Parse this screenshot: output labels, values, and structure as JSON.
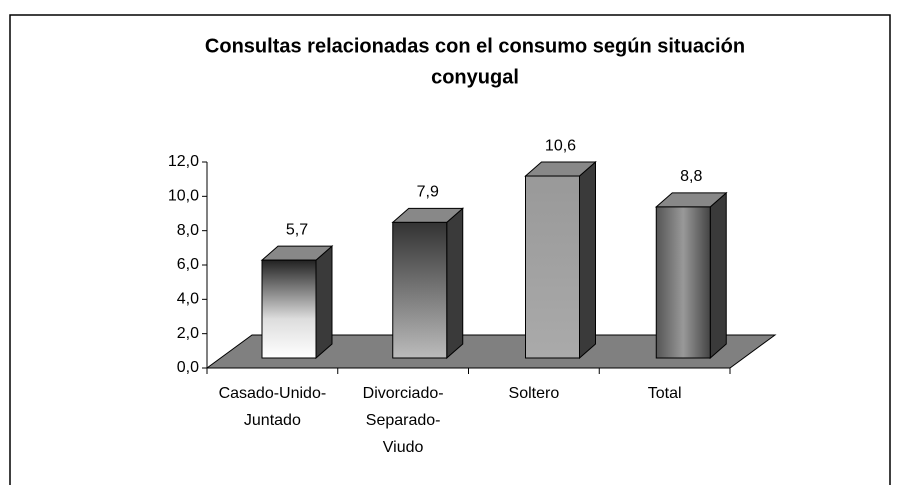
{
  "chart_data": {
    "type": "bar3d",
    "title": [
      "Consultas relacionadas con el consumo según situación",
      "conyugal"
    ],
    "categories": [
      [
        "Casado-Unido-",
        "Juntado"
      ],
      [
        "Divorciado-",
        "Separado-",
        "Viudo"
      ],
      [
        "Soltero"
      ],
      [
        "Total"
      ]
    ],
    "values": [
      5.7,
      7.9,
      10.6,
      8.8
    ],
    "value_labels": [
      "5,7",
      "7,9",
      "10,6",
      "8,8"
    ],
    "ylim": [
      0,
      12
    ],
    "yticks": [
      {
        "value": 0,
        "label": "0,0"
      },
      {
        "value": 2,
        "label": "2,0"
      },
      {
        "value": 4,
        "label": "4,0"
      },
      {
        "value": 6,
        "label": "6,0"
      },
      {
        "value": 8,
        "label": "8,0"
      },
      {
        "value": 10,
        "label": "10,0"
      },
      {
        "value": 12,
        "label": "12,0"
      }
    ],
    "floor_color": "#808080"
  }
}
